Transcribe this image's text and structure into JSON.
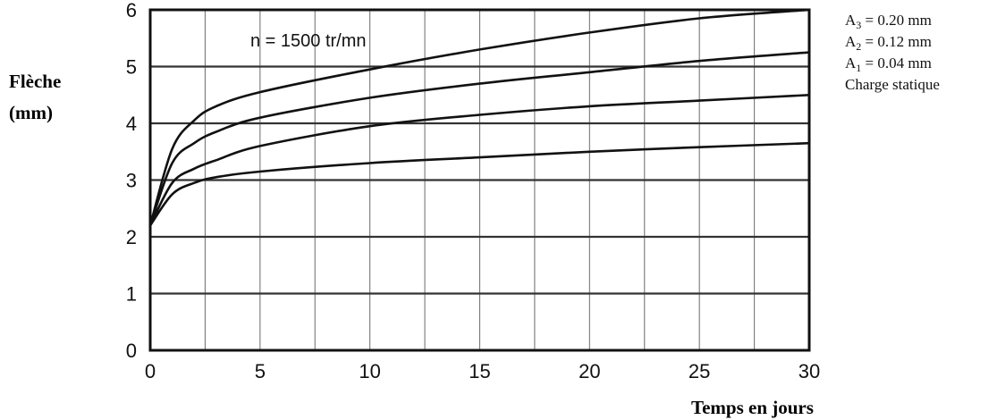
{
  "chart_data": {
    "type": "line",
    "ylabel_line1": "Flèche",
    "ylabel_line2": "(mm)",
    "xlabel": "Temps en jours",
    "annotation": "n = 1500 tr/mn",
    "xlim": [
      0,
      30
    ],
    "ylim": [
      0,
      6
    ],
    "x_ticks": [
      "0",
      "5",
      "10",
      "15",
      "20",
      "25",
      "30"
    ],
    "y_ticks": [
      "0",
      "1",
      "2",
      "3",
      "4",
      "5",
      "6"
    ],
    "grid": true,
    "legend_position": "top-right, outside plot",
    "x": [
      0,
      1,
      2,
      3,
      5,
      10,
      15,
      20,
      25,
      30
    ],
    "series": [
      {
        "label_base": "A",
        "label_sub": "3",
        "label_rest": " = 0.20 mm",
        "values": [
          2.2,
          3.55,
          4.05,
          4.3,
          4.55,
          4.95,
          5.3,
          5.6,
          5.85,
          6.0
        ]
      },
      {
        "label_base": "A",
        "label_sub": "2",
        "label_rest": " = 0.12 mm",
        "values": [
          2.2,
          3.3,
          3.65,
          3.85,
          4.1,
          4.45,
          4.7,
          4.9,
          5.1,
          5.25
        ]
      },
      {
        "label_base": "A",
        "label_sub": "1",
        "label_rest": " = 0.04 mm",
        "values": [
          2.2,
          2.95,
          3.2,
          3.35,
          3.6,
          3.95,
          4.15,
          4.3,
          4.4,
          4.5
        ]
      },
      {
        "label_base": "Charge statique",
        "label_sub": "",
        "label_rest": "",
        "values": [
          2.2,
          2.75,
          2.95,
          3.05,
          3.15,
          3.3,
          3.4,
          3.5,
          3.58,
          3.65
        ]
      }
    ]
  }
}
